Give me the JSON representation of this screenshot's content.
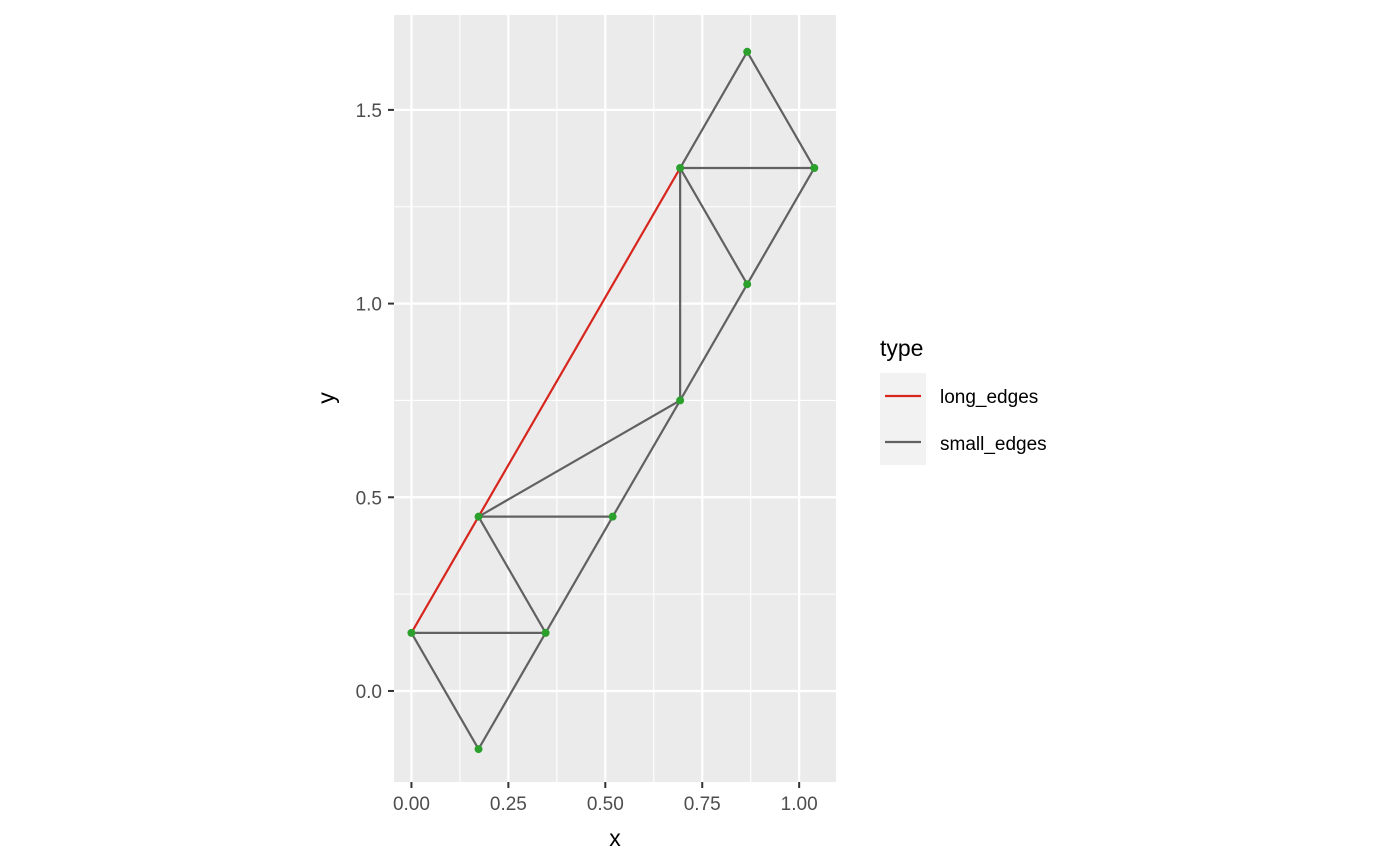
{
  "chart_data": {
    "type": "line",
    "xlabel": "x",
    "ylabel": "y",
    "xlim": [
      -0.045,
      1.095
    ],
    "ylim": [
      -0.235,
      1.745
    ],
    "x_ticks": [
      0.0,
      0.25,
      0.5,
      0.75,
      1.0
    ],
    "x_tick_labels": [
      "0.00",
      "0.25",
      "0.50",
      "0.75",
      "1.00"
    ],
    "y_ticks": [
      0.0,
      0.5,
      1.0,
      1.5
    ],
    "y_tick_labels": [
      "0.0",
      "0.5",
      "1.0",
      "1.5"
    ],
    "grid": true,
    "legend": {
      "title": "type",
      "position": "right",
      "entries": [
        {
          "label": "long_edges",
          "color": "#d7261e"
        },
        {
          "label": "small_edges",
          "color": "#616161"
        }
      ]
    },
    "series": [
      {
        "name": "long_edges",
        "color": "#d7261e",
        "segments": [
          {
            "x": [
              0.0,
              0.173
            ],
            "y": [
              0.15,
              0.45
            ]
          },
          {
            "x": [
              0.173,
              0.693
            ],
            "y": [
              0.45,
              1.35
            ]
          }
        ]
      },
      {
        "name": "small_edges",
        "color": "#616161",
        "segments": [
          {
            "x": [
              0.0,
              0.173
            ],
            "y": [
              0.15,
              -0.15
            ]
          },
          {
            "x": [
              0.0,
              0.346
            ],
            "y": [
              0.15,
              0.15
            ]
          },
          {
            "x": [
              0.173,
              0.346
            ],
            "y": [
              -0.15,
              0.15
            ]
          },
          {
            "x": [
              0.173,
              0.346
            ],
            "y": [
              0.45,
              0.15
            ]
          },
          {
            "x": [
              0.173,
              0.519
            ],
            "y": [
              0.45,
              0.45
            ]
          },
          {
            "x": [
              0.346,
              0.519
            ],
            "y": [
              0.15,
              0.45
            ]
          },
          {
            "x": [
              0.173,
              0.693
            ],
            "y": [
              0.45,
              0.75
            ]
          },
          {
            "x": [
              0.519,
              0.693
            ],
            "y": [
              0.45,
              0.75
            ]
          },
          {
            "x": [
              0.693,
              0.693
            ],
            "y": [
              0.75,
              1.35
            ]
          },
          {
            "x": [
              0.693,
              0.866
            ],
            "y": [
              0.75,
              1.05
            ]
          },
          {
            "x": [
              0.693,
              0.866
            ],
            "y": [
              1.35,
              1.05
            ]
          },
          {
            "x": [
              0.866,
              1.039
            ],
            "y": [
              1.05,
              1.35
            ]
          },
          {
            "x": [
              0.693,
              1.039
            ],
            "y": [
              1.35,
              1.35
            ]
          },
          {
            "x": [
              0.693,
              0.866
            ],
            "y": [
              1.35,
              1.65
            ]
          },
          {
            "x": [
              0.866,
              1.039
            ],
            "y": [
              1.65,
              1.35
            ]
          }
        ]
      }
    ],
    "points": {
      "color": "#2ca02c",
      "x": [
        0.0,
        0.173,
        0.173,
        0.346,
        0.519,
        0.693,
        0.693,
        0.866,
        0.866,
        1.039
      ],
      "y": [
        0.15,
        -0.15,
        0.45,
        0.15,
        0.45,
        0.75,
        1.35,
        1.05,
        1.65,
        1.35
      ]
    }
  },
  "colors": {
    "panel_background": "#ebebeb",
    "grid_major": "#ffffff",
    "legend_key_background": "#f2f2f2"
  }
}
